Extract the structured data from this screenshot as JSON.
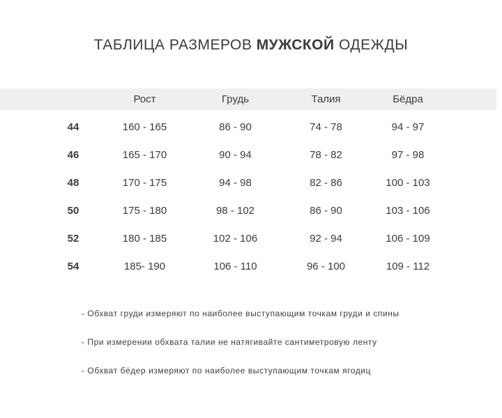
{
  "title": {
    "prefix": "ТАБЛИЦА РАЗМЕРОВ",
    "emphasis": "МУЖСКОЙ",
    "suffix": "ОДЕЖДЫ"
  },
  "table": {
    "columns": [
      "Рост",
      "Грудь",
      "Талия",
      "Бёдра"
    ],
    "rows": [
      {
        "size": "44",
        "height": "160 - 165",
        "chest": "86 - 90",
        "waist": "74 - 78",
        "hips": "94 - 97"
      },
      {
        "size": "46",
        "height": "165 - 170",
        "chest": "90 - 94",
        "waist": "78 - 82",
        "hips": "97 - 98"
      },
      {
        "size": "48",
        "height": "170 - 175",
        "chest": "94 - 98",
        "waist": "82 - 86",
        "hips": "100 - 103"
      },
      {
        "size": "50",
        "height": "175 - 180",
        "chest": "98 - 102",
        "waist": "86 - 90",
        "hips": "103 - 106"
      },
      {
        "size": "52",
        "height": "180 - 185",
        "chest": "102 - 106",
        "waist": "92 - 94",
        "hips": "106 - 109"
      },
      {
        "size": "54",
        "height": "185- 190",
        "chest": "106 - 110",
        "waist": "96 - 100",
        "hips": "109 - 112"
      }
    ]
  },
  "notes": [
    "- Обхват груди измеряют по наиболее выступающим точкам груди и спины",
    "- При измерении обхвата талии не натягивайте сантиметровую ленту",
    "- Обхват бёдер измеряют по наиболее выступающим точкам ягодиц"
  ],
  "colors": {
    "header_band": "#efefef",
    "text": "#3b3b3b"
  }
}
